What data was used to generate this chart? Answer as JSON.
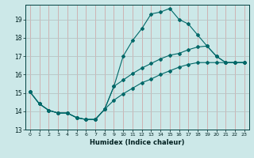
{
  "xlabel": "Humidex (Indice chaleur)",
  "bg_color": "#cce8e8",
  "grid_color": "#b8c8c8",
  "line_color": "#006868",
  "xlim": [
    -0.5,
    23.5
  ],
  "ylim": [
    13.0,
    19.8
  ],
  "yticks": [
    13,
    14,
    15,
    16,
    17,
    18,
    19
  ],
  "xticks": [
    0,
    1,
    2,
    3,
    4,
    5,
    6,
    7,
    8,
    9,
    10,
    11,
    12,
    13,
    14,
    15,
    16,
    17,
    18,
    19,
    20,
    21,
    22,
    23
  ],
  "line1_x": [
    0,
    1,
    2,
    3,
    4,
    5,
    6,
    7,
    8,
    9,
    10,
    11,
    12,
    13,
    14,
    15,
    16,
    17,
    18,
    19,
    20,
    21,
    22,
    23
  ],
  "line1_y": [
    15.05,
    14.4,
    14.05,
    13.9,
    13.9,
    13.65,
    13.55,
    13.55,
    14.1,
    15.35,
    17.0,
    17.85,
    18.5,
    19.3,
    19.4,
    19.6,
    19.0,
    18.75,
    18.15,
    17.55,
    17.0,
    16.65,
    16.65,
    16.65
  ],
  "line2_x": [
    0,
    1,
    2,
    3,
    4,
    5,
    6,
    7,
    8,
    9,
    10,
    11,
    12,
    13,
    14,
    15,
    16,
    17,
    18,
    19,
    20,
    21,
    22,
    23
  ],
  "line2_y": [
    15.05,
    14.4,
    14.05,
    13.9,
    13.9,
    13.65,
    13.55,
    13.55,
    14.1,
    15.35,
    15.7,
    16.05,
    16.35,
    16.6,
    16.85,
    17.05,
    17.15,
    17.35,
    17.5,
    17.55,
    17.0,
    16.65,
    16.65,
    16.65
  ],
  "line3_x": [
    0,
    1,
    2,
    3,
    4,
    5,
    6,
    7,
    8,
    9,
    10,
    11,
    12,
    13,
    14,
    15,
    16,
    17,
    18,
    19,
    20,
    21,
    22,
    23
  ],
  "line3_y": [
    15.05,
    14.4,
    14.05,
    13.9,
    13.9,
    13.65,
    13.55,
    13.55,
    14.1,
    14.6,
    14.95,
    15.25,
    15.55,
    15.75,
    16.0,
    16.2,
    16.4,
    16.55,
    16.65,
    16.65,
    16.65,
    16.65,
    16.65,
    16.65
  ]
}
